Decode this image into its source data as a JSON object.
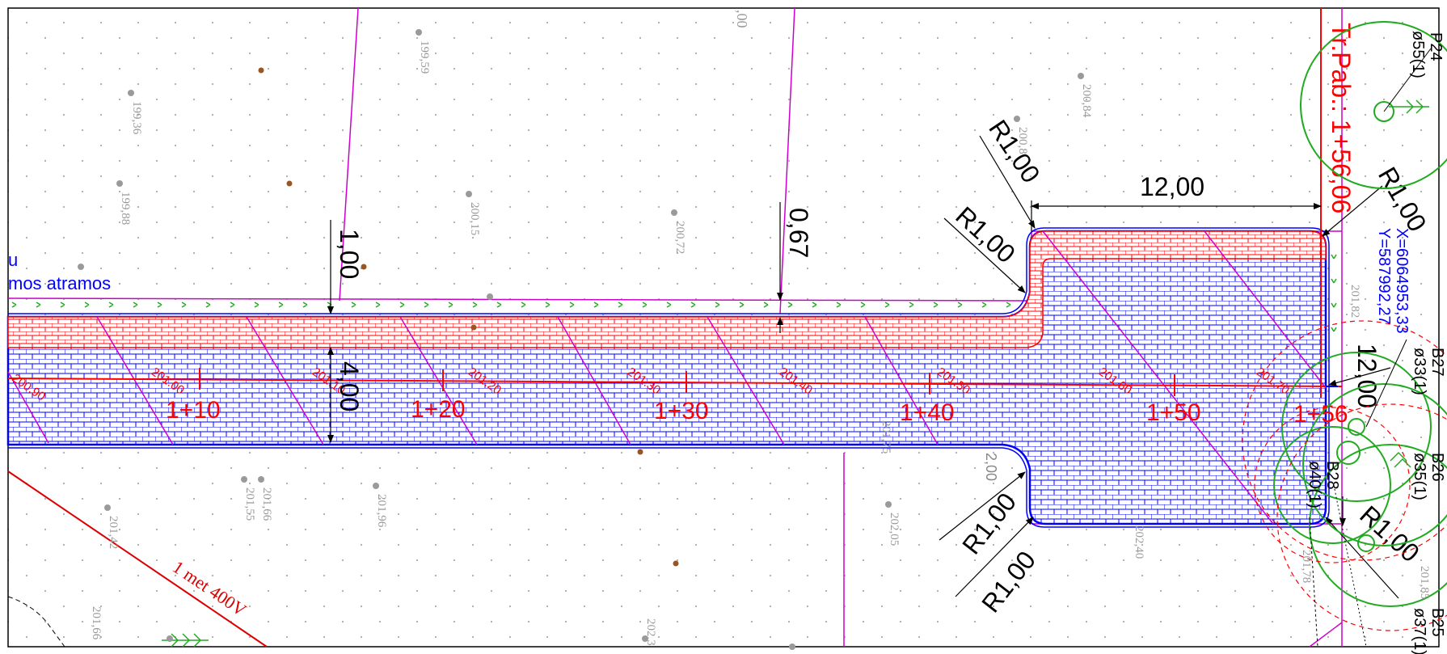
{
  "colors": {
    "paving_blue": "#0000ff",
    "paving_red": "#ff0000",
    "property_line": "#cc00cc",
    "dimension": "#000000",
    "tree": "#22aa22",
    "elevation": "#9a9a9a",
    "power_line": "#dd0000",
    "edge_vegetation": "#22aa22"
  },
  "legend_fragment": {
    "line1": "u",
    "line2": "mos atramos"
  },
  "dimensions": {
    "d_1_00_top": "1,00",
    "d_0_67": "0,67",
    "d_4_00": "4,00",
    "d_12_00_top": "12,00",
    "d_12_00_right": "12,00",
    "d_2_00": "2,00"
  },
  "radii": {
    "r_top_a": "R1,00",
    "r_top_b": "R1,00",
    "r_bottom_a": "R1,00",
    "r_bottom_b": "R1,00",
    "r_right_top": "R1,00",
    "r_right_bottom": "R1,00"
  },
  "chainage": {
    "c110": "1+10",
    "c120": "1+20",
    "c130": "1+30",
    "c140": "1+40",
    "c150": "1+50",
    "c156": "1+56",
    "end_label": "Tr.Pab.: 1+56,06"
  },
  "contours": {
    "k0": "200.90",
    "k1": "201.00",
    "k2": "201.10",
    "k3": "201.20",
    "k4": "201.30",
    "k5": "201.40",
    "k6": "201.50",
    "k7": "201.60",
    "k8": "201.70"
  },
  "coordinates": {
    "x": "X=6064953,33",
    "y": "Y=587992,27"
  },
  "trees": {
    "p24": "P24",
    "p24_d": "ø55(1)",
    "b27": "B27",
    "b27_d": "ø33(1)",
    "b26": "B26",
    "b26_d": "ø35(1)",
    "b28": "B28",
    "b28_d": "ø40(1)",
    "b25": "B25",
    "b25_d": "ø37(1)"
  },
  "power_line": "1 met 400V",
  "spot_heights": {
    "h1": "199,36",
    "h2": "199,59",
    "h3": "199,88",
    "h4": "200,15",
    "h5": "200,72",
    "h6": "200,84",
    "h7": "200,8",
    "h8": "201,55",
    "h9": "201,66",
    "h10": "201,42",
    "h11": "201,96",
    "h12": "201,66",
    "h13": "202,05",
    "h14": "202,3",
    "h15": "202,40",
    "h16": "201,75",
    "h17": "201,82",
    "h18": "201,78",
    "h19": "201,85",
    "h20": ",00"
  }
}
